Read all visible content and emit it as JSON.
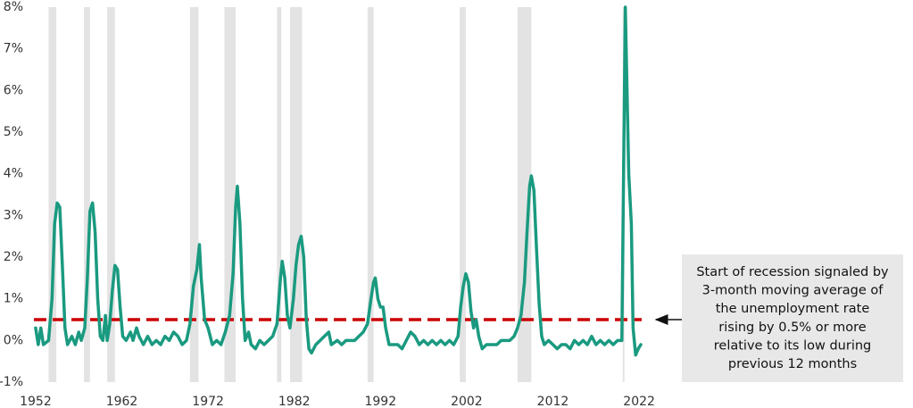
{
  "chart_data": {
    "type": "line",
    "xlim": [
      1951.8,
      2022.3
    ],
    "xticks": [
      1952,
      1962,
      1972,
      1982,
      1992,
      2002,
      2012,
      2022
    ],
    "ylim": [
      -1,
      8
    ],
    "yticks": [
      {
        "value": -1,
        "label": "-1%"
      },
      {
        "value": 0,
        "label": "0%"
      },
      {
        "value": 1,
        "label": "1%"
      },
      {
        "value": 2,
        "label": "2%"
      },
      {
        "value": 3,
        "label": "3%"
      },
      {
        "value": 4,
        "label": "4%"
      },
      {
        "value": 5,
        "label": "5%"
      },
      {
        "value": 6,
        "label": "6%"
      },
      {
        "value": 7,
        "label": "7%"
      },
      {
        "value": 8,
        "label": "8%"
      }
    ],
    "x": [
      1952.0,
      1952.3,
      1952.6,
      1952.9,
      1953.5,
      1953.9,
      1954.2,
      1954.5,
      1954.8,
      1955.1,
      1955.4,
      1955.7,
      1956.2,
      1956.6,
      1957.0,
      1957.3,
      1957.7,
      1958.0,
      1958.3,
      1958.6,
      1958.9,
      1959.2,
      1959.5,
      1959.8,
      1960.1,
      1960.3,
      1960.6,
      1960.9,
      1961.2,
      1961.5,
      1961.8,
      1962.1,
      1962.5,
      1963.0,
      1963.3,
      1963.7,
      1964.0,
      1964.5,
      1965.0,
      1965.5,
      1966.0,
      1966.5,
      1967.0,
      1967.5,
      1968.0,
      1968.5,
      1969.0,
      1969.5,
      1969.9,
      1970.3,
      1970.7,
      1971.0,
      1971.2,
      1971.6,
      1972.0,
      1972.5,
      1973.0,
      1973.5,
      1974.0,
      1974.5,
      1974.9,
      1975.2,
      1975.4,
      1975.7,
      1976.0,
      1976.3,
      1976.7,
      1977.0,
      1977.5,
      1978.0,
      1978.5,
      1979.0,
      1979.5,
      1980.0,
      1980.4,
      1980.6,
      1980.9,
      1981.2,
      1981.5,
      1981.9,
      1982.2,
      1982.5,
      1982.8,
      1983.1,
      1983.4,
      1983.7,
      1984.0,
      1984.5,
      1985.0,
      1985.5,
      1986.0,
      1986.3,
      1987.0,
      1987.5,
      1988.0,
      1988.5,
      1989.0,
      1989.5,
      1990.0,
      1990.5,
      1990.9,
      1991.2,
      1991.4,
      1991.7,
      1992.0,
      1992.3,
      1992.6,
      1993.0,
      1993.5,
      1994.0,
      1994.5,
      1995.0,
      1995.5,
      1996.0,
      1996.5,
      1997.0,
      1997.5,
      1998.0,
      1998.5,
      1999.0,
      1999.5,
      2000.0,
      2000.5,
      2001.0,
      2001.3,
      2001.6,
      2001.9,
      2002.2,
      2002.5,
      2002.8,
      2003.1,
      2003.4,
      2003.8,
      2004.3,
      2005.0,
      2005.5,
      2006.0,
      2006.5,
      2007.0,
      2007.5,
      2007.9,
      2008.3,
      2008.7,
      2009.0,
      2009.3,
      2009.5,
      2009.8,
      2010.1,
      2010.4,
      2010.7,
      2011.0,
      2011.5,
      2012.0,
      2012.5,
      2013.0,
      2013.5,
      2014.0,
      2014.5,
      2015.0,
      2015.5,
      2016.0,
      2016.5,
      2017.0,
      2017.5,
      2018.0,
      2018.5,
      2019.0,
      2019.5,
      2020.0,
      2020.2,
      2020.4,
      2020.6,
      2020.8,
      2021.0,
      2021.1,
      2021.3,
      2021.6,
      2021.9,
      2022.2
    ],
    "series": [
      {
        "color": "#1a9a80",
        "values": [
          0.3,
          -0.1,
          0.3,
          -0.1,
          0.0,
          1.0,
          2.8,
          3.3,
          3.2,
          1.8,
          0.3,
          -0.1,
          0.1,
          -0.1,
          0.2,
          0.0,
          0.3,
          1.5,
          3.1,
          3.3,
          2.6,
          1.0,
          0.1,
          0.0,
          0.6,
          0.0,
          0.4,
          1.2,
          1.8,
          1.7,
          0.8,
          0.1,
          0.0,
          0.2,
          0.0,
          0.3,
          0.1,
          -0.1,
          0.1,
          -0.1,
          0.0,
          -0.1,
          0.1,
          0.0,
          0.2,
          0.1,
          -0.1,
          0.0,
          0.4,
          1.3,
          1.7,
          2.3,
          1.5,
          0.5,
          0.3,
          -0.1,
          0.0,
          -0.1,
          0.2,
          0.6,
          1.6,
          3.2,
          3.7,
          2.8,
          1.0,
          0.0,
          0.2,
          -0.1,
          -0.2,
          0.0,
          -0.1,
          0.0,
          0.1,
          0.4,
          1.5,
          1.9,
          1.5,
          0.6,
          0.3,
          1.0,
          1.8,
          2.3,
          2.5,
          2.0,
          0.5,
          -0.2,
          -0.3,
          -0.1,
          0.0,
          0.1,
          0.2,
          -0.1,
          0.0,
          -0.1,
          0.0,
          0.0,
          0.0,
          0.1,
          0.2,
          0.4,
          1.0,
          1.4,
          1.5,
          1.0,
          0.8,
          0.8,
          0.3,
          -0.1,
          -0.1,
          -0.1,
          -0.2,
          0.0,
          0.2,
          0.1,
          -0.1,
          0.0,
          -0.1,
          0.0,
          -0.1,
          0.0,
          -0.1,
          0.0,
          -0.1,
          0.1,
          0.8,
          1.3,
          1.6,
          1.4,
          0.7,
          0.3,
          0.5,
          0.1,
          -0.2,
          -0.1,
          -0.1,
          -0.1,
          0.0,
          0.0,
          0.0,
          0.1,
          0.3,
          0.6,
          1.4,
          2.6,
          3.7,
          3.95,
          3.6,
          2.2,
          0.9,
          0.1,
          -0.1,
          0.0,
          -0.1,
          -0.2,
          -0.1,
          -0.1,
          -0.2,
          0.0,
          -0.1,
          0.0,
          -0.1,
          0.1,
          -0.1,
          0.0,
          -0.1,
          0.0,
          -0.1,
          0.0,
          0.0,
          4.0,
          8.0,
          6.0,
          4.0,
          3.2,
          2.8,
          0.3,
          -0.35,
          -0.2,
          -0.1
        ]
      }
    ],
    "recession_shading": {
      "color": "#e3e3e3",
      "ranges": [
        [
          1953.5,
          1954.4
        ],
        [
          1957.6,
          1958.3
        ],
        [
          1960.3,
          1961.2
        ],
        [
          1969.9,
          1970.9
        ],
        [
          1973.9,
          1975.2
        ],
        [
          1980.0,
          1980.5
        ],
        [
          1981.5,
          1982.9
        ],
        [
          1990.5,
          1991.2
        ],
        [
          2001.2,
          2001.9
        ],
        [
          2007.9,
          2009.5
        ],
        [
          2020.1,
          2020.3
        ]
      ]
    },
    "reference_line": {
      "value": 0.5,
      "color": "#cc0000"
    },
    "annotation": {
      "lines": [
        "Start of recession signaled by",
        "3-month moving average of",
        "the unemployment rate",
        "rising by 0.5% or more",
        "relative to its low during",
        "previous 12 months"
      ]
    }
  }
}
